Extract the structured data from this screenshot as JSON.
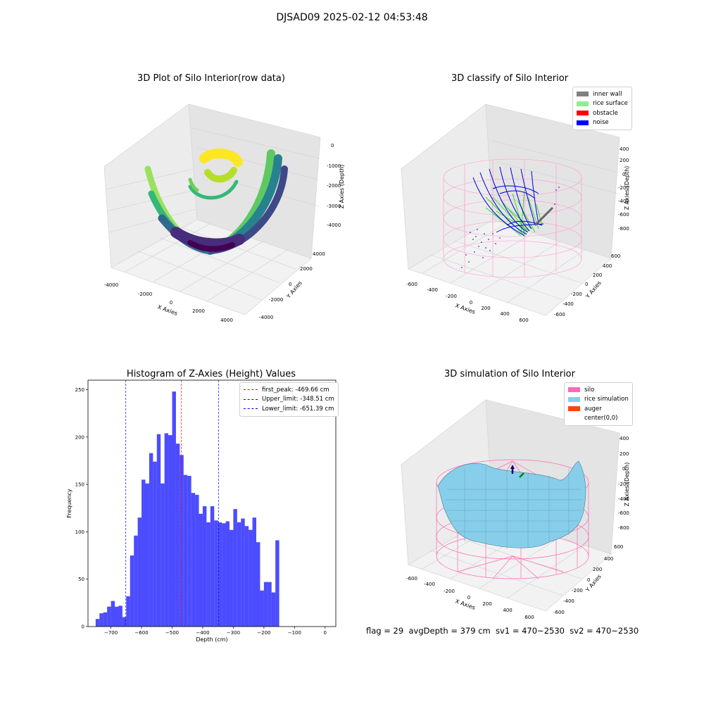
{
  "suptitle": "DJSAD09 2025-02-12 04:53:48",
  "panels": {
    "raw": {
      "title": "3D Plot of Silo Interior(row data)",
      "xlabel": "X Axies",
      "ylabel": "Y Axies",
      "zlabel": "Z Axies (Depth)",
      "xticks": [
        "-4000",
        "-2000",
        "0",
        "2000",
        "4000"
      ],
      "yticks": [
        "-4000",
        "-2000",
        "0",
        "2000",
        "4000"
      ],
      "zticks": [
        "0",
        "-1000",
        "-2000",
        "-3000",
        "-4000"
      ]
    },
    "classify": {
      "title": "3D classify of Silo Interior",
      "xlabel": "X Axies",
      "ylabel": "Y Axies",
      "zlabel": "Z Axies (Depth)",
      "xticks": [
        "-600",
        "-400",
        "-200",
        "0",
        "200",
        "400",
        "600"
      ],
      "yticks": [
        "600",
        "400",
        "200",
        "0",
        "-200",
        "-400",
        "-600"
      ],
      "zticks": [
        "400",
        "200",
        "0",
        "-200",
        "-400",
        "-600",
        "-800"
      ],
      "legend": [
        {
          "label": "inner wall",
          "color": "#808080"
        },
        {
          "label": "rice surface",
          "color": "#90ee90"
        },
        {
          "label": "obstacle",
          "color": "#ff0000"
        },
        {
          "label": "noise",
          "color": "#0000ff"
        }
      ]
    },
    "simulation": {
      "title": "3D simulation of Silo Interior",
      "xlabel": "X Axies",
      "ylabel": "Y Axies",
      "zlabel": "Z Axies (Depth)",
      "xticks": [
        "-600",
        "-400",
        "-200",
        "0",
        "200",
        "400",
        "600"
      ],
      "yticks": [
        "600",
        "400",
        "200",
        "0",
        "-200",
        "-400",
        "-600"
      ],
      "zticks": [
        "400",
        "200",
        "0",
        "-200",
        "-400",
        "-600",
        "-800"
      ],
      "legend": [
        {
          "label": "silo",
          "color": "#ff69b4"
        },
        {
          "label": "rice simulation",
          "color": "#87ceeb"
        },
        {
          "label": "auger",
          "color": "#ff4500"
        },
        {
          "label": "center(0,0)",
          "color": "#ffffff"
        }
      ]
    }
  },
  "status_line": "flag = 29  avgDepth = 379 cm  sv1 = 470~2530  sv2 = 470~2530",
  "chart_data": [
    {
      "type": "bar",
      "title": "Histogram of Z-Axies (Height) Values",
      "xlabel": "Depth (cm)",
      "ylabel": "Frequency",
      "xlim": [
        -775,
        35
      ],
      "ylim": [
        0,
        260
      ],
      "xticks": [
        -700,
        -600,
        -500,
        -400,
        -300,
        -200,
        -100,
        0
      ],
      "yticks": [
        0,
        50,
        100,
        150,
        200,
        250
      ],
      "bar_color": "#0000ff",
      "bins_start": -750,
      "bin_width": 12.5,
      "values": [
        8,
        14,
        15,
        21,
        27,
        21,
        22,
        10,
        32,
        75,
        96,
        115,
        155,
        151,
        183,
        174,
        203,
        151,
        204,
        202,
        248,
        193,
        181,
        160,
        159,
        141,
        139,
        119,
        127,
        110,
        127,
        112,
        110,
        109,
        111,
        102,
        124,
        110,
        114,
        106,
        102,
        115,
        89,
        38,
        47,
        47,
        36,
        91
      ],
      "vlines": [
        {
          "x": -469.66,
          "color": "#ff0000",
          "label": "first_peak: -469.66 cm"
        },
        {
          "x": -348.51,
          "color": "#0000ff",
          "label": "Upper_limit: -348.51 cm"
        },
        {
          "x": -651.39,
          "color": "#0000ff",
          "label": "Lower_limit: -651.39 cm"
        }
      ],
      "legend_position": "top-right",
      "grid": false
    }
  ]
}
